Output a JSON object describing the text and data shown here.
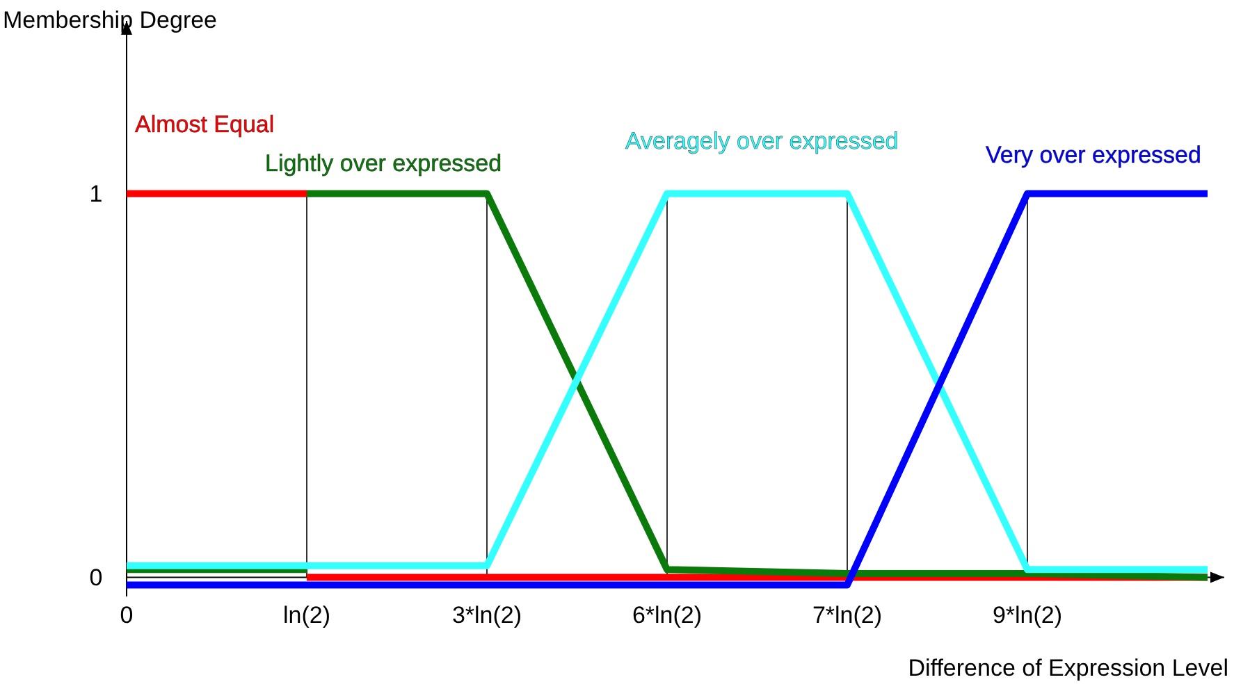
{
  "chart_data": {
    "type": "line",
    "xlabel": "Difference of Expression Level",
    "ylabel": "Membership Degree",
    "categories": [
      "0",
      "ln(2)",
      "3*ln(2)",
      "6*ln(2)",
      "7*ln(2)",
      "9*ln(2)",
      null
    ],
    "ylim": [
      -0.05,
      1.45
    ],
    "yticks": [
      0,
      1
    ],
    "marker": "none",
    "line_style": "solid",
    "ref_lines": [
      {
        "axis": "x",
        "value": "ln(2)",
        "color": "#000000"
      },
      {
        "axis": "x",
        "value": "3*ln(2)",
        "color": "#000000"
      },
      {
        "axis": "x",
        "value": "6*ln(2)",
        "color": "#000000"
      },
      {
        "axis": "x",
        "value": "7*ln(2)",
        "color": "#000000"
      },
      {
        "axis": "x",
        "value": "9*ln(2)",
        "color": "#000000"
      }
    ],
    "series": [
      {
        "name": "Almost Equal",
        "color": "#ff0000",
        "values": [
          1,
          1,
          null,
          null,
          null,
          null,
          null
        ]
      },
      {
        "color": "#ff0000",
        "values": [
          null,
          0,
          0,
          0,
          0,
          0,
          0
        ]
      },
      {
        "name": "Lightly over expressed",
        "color": "#0a7a0a",
        "values": [
          null,
          1,
          1,
          0.02,
          0.01,
          0.01,
          0
        ]
      },
      {
        "color": "#0a7a0a",
        "values": [
          0.02,
          0.02,
          null,
          null,
          null,
          null,
          null
        ]
      },
      {
        "name": "Averagely over expressed",
        "color": "#33ffff",
        "values": [
          0.03,
          0.03,
          0.03,
          1,
          1,
          0.02,
          0.02
        ]
      },
      {
        "name": "Very over expressed",
        "color": "#0000ff",
        "values": [
          -0.02,
          -0.02,
          -0.02,
          -0.02,
          -0.02,
          1,
          1
        ]
      }
    ]
  }
}
